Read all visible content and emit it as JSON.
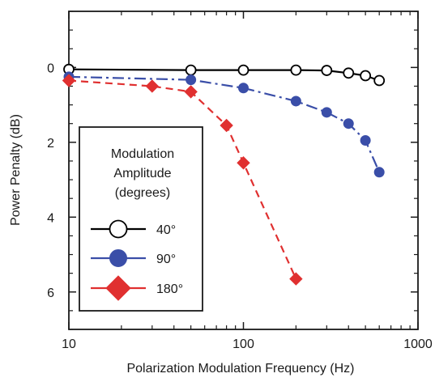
{
  "chart_data": {
    "type": "line",
    "xlabel": "Polarization Modulation Frequency (Hz)",
    "ylabel": "Power Penalty (dB)",
    "x_scale": "log",
    "xlim": [
      10,
      1000
    ],
    "ylim": [
      7,
      -1.5
    ],
    "x_ticks": [
      10,
      100,
      1000
    ],
    "x_tick_labels": [
      "10",
      "100",
      "1000"
    ],
    "y_ticks": [
      0,
      2,
      4,
      6
    ],
    "y_tick_labels": [
      "0",
      "2",
      "4",
      "6"
    ],
    "grid": false,
    "legend": {
      "placement": "bottom-left",
      "title_lines": [
        "Modulation",
        "Amplitude",
        "(degrees)"
      ]
    },
    "series": [
      {
        "name": "40°",
        "color": "#000000",
        "marker": "circle-open",
        "line": "solid",
        "x": [
          10,
          50,
          100,
          200,
          300,
          400,
          500,
          600
        ],
        "y": [
          0.05,
          0.07,
          0.07,
          0.07,
          0.08,
          0.15,
          0.22,
          0.35
        ]
      },
      {
        "name": "90°",
        "color": "#3a4ea8",
        "marker": "circle-filled",
        "line": "dash-dot",
        "x": [
          10,
          50,
          100,
          200,
          300,
          400,
          500,
          600
        ],
        "y": [
          0.25,
          0.33,
          0.55,
          0.9,
          1.2,
          1.5,
          1.95,
          2.8
        ]
      },
      {
        "name": "180°",
        "color": "#e03030",
        "marker": "diamond-filled",
        "line": "dashed",
        "x": [
          10,
          30,
          50,
          80,
          100,
          200
        ],
        "y": [
          0.35,
          0.5,
          0.65,
          1.55,
          2.55,
          5.65
        ]
      }
    ]
  }
}
